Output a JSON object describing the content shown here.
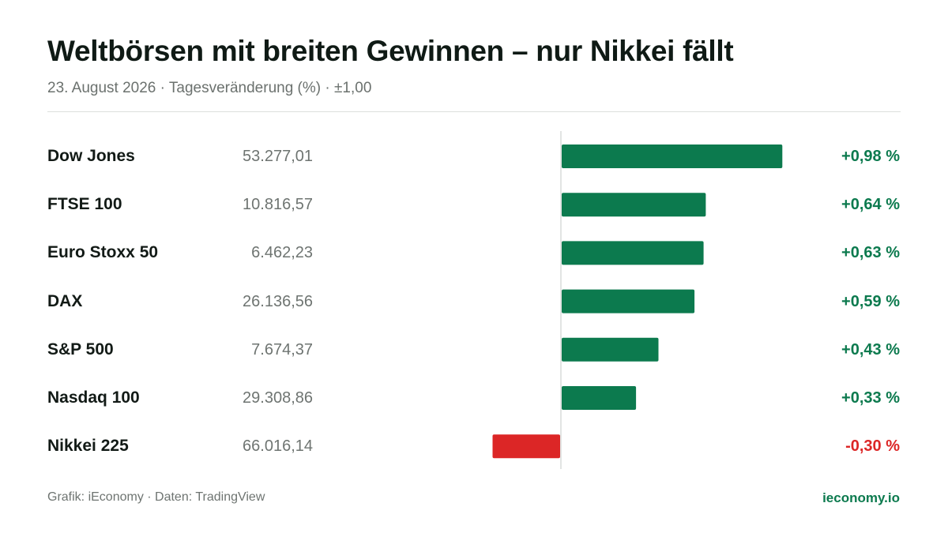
{
  "header": {
    "title": "Weltbörsen mit breiten Gewinnen – nur Nikkei fällt",
    "subtitle": "23. August 2026 · Tagesveränderung (%) · ±1,00"
  },
  "colors": {
    "positive": "#0c7a4e",
    "negative": "#dc2626",
    "axis": "#d9dcda"
  },
  "chart_data": {
    "type": "bar",
    "orientation": "horizontal",
    "categories": [
      "Dow Jones",
      "FTSE 100",
      "Euro Stoxx 50",
      "DAX",
      "S&P 500",
      "Nasdaq 100",
      "Nikkei 225"
    ],
    "levels": [
      "53.277,01",
      "10.816,57",
      "6.462,23",
      "26.136,56",
      "7.674,37",
      "29.308,86",
      "66.016,14"
    ],
    "values": [
      0.98,
      0.64,
      0.63,
      0.59,
      0.43,
      0.33,
      -0.3
    ],
    "value_labels": [
      "+0,98 %",
      "+0,64 %",
      "+0,63 %",
      "+0,59 %",
      "+0,43 %",
      "+0,33 %",
      "-0,30 %"
    ],
    "xlim": [
      -1.0,
      1.0
    ],
    "grid": false,
    "legend": "none"
  },
  "footer": {
    "source": "Grafik: iEconomy · Daten: TradingView",
    "brand": "ieconomy.io"
  }
}
